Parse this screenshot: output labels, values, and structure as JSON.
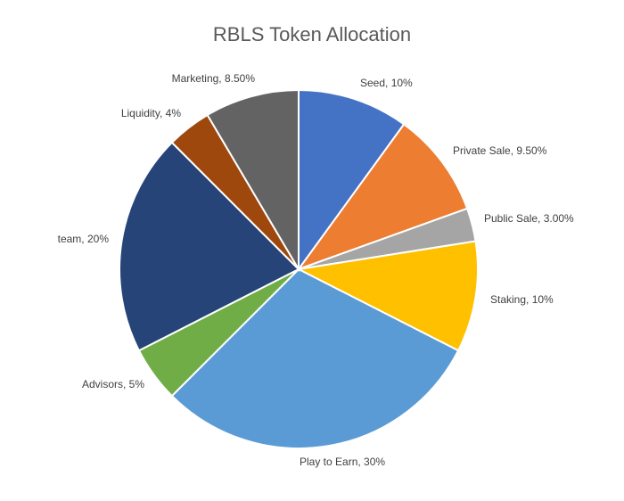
{
  "chart_data": {
    "type": "pie",
    "title": "RBLS Token Allocation",
    "slices": [
      {
        "label": "Seed",
        "value": 10,
        "display": "Seed, 10%",
        "color": "#4472C4"
      },
      {
        "label": "Private Sale",
        "value": 9.5,
        "display": "Private Sale, 9.50%",
        "color": "#ED7D31"
      },
      {
        "label": "Public Sale",
        "value": 3.0,
        "display": "Public Sale, 3.00%",
        "color": "#A5A5A5"
      },
      {
        "label": "Staking",
        "value": 10,
        "display": "Staking, 10%",
        "color": "#FFC000"
      },
      {
        "label": "Play to Earn",
        "value": 30,
        "display": "Play to Earn, 30%",
        "color": "#5B9BD5"
      },
      {
        "label": "Advisors",
        "value": 5,
        "display": "Advisors, 5%",
        "color": "#70AD47"
      },
      {
        "label": "team",
        "value": 20,
        "display": "team, 20%",
        "color": "#264478"
      },
      {
        "label": "Liquidity",
        "value": 4,
        "display": "Liquidity, 4%",
        "color": "#9E480E"
      },
      {
        "label": "Marketing",
        "value": 8.5,
        "display": "Marketing, 8.50%",
        "color": "#636363"
      }
    ],
    "start_angle": "12 o'clock",
    "direction": "clockwise",
    "legend": "none",
    "label_position": "outside-end"
  }
}
